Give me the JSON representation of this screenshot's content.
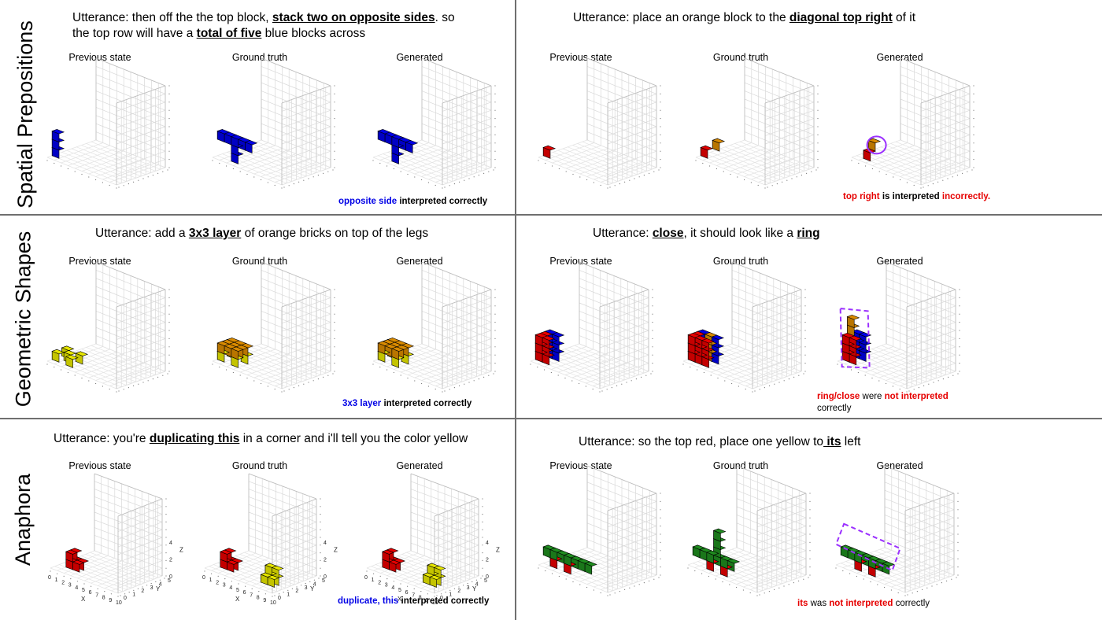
{
  "row_labels": [
    "Spatial Prepositions",
    "Geometric Shapes",
    "Anaphora"
  ],
  "column_labels": [
    "Previous state",
    "Ground truth",
    "Generated"
  ],
  "panels": [
    {
      "utterance_parts": [
        {
          "text": "Utterance: then off the the top block, ",
          "em": false
        },
        {
          "text": "stack two on opposite sides",
          "em": true
        },
        {
          "text": ". so",
          "em": false
        }
      ],
      "utterance_line2_parts": [
        {
          "text": "the top row will have a ",
          "em": false
        },
        {
          "text": "total of five",
          "em": true
        },
        {
          "text": " blue blocks across",
          "em": false
        }
      ],
      "caption_parts": [
        {
          "text": "opposite side",
          "color": "blue"
        },
        {
          "text": " interpreted correctly",
          "color": "black"
        }
      ]
    },
    {
      "utterance_parts": [
        {
          "text": "Utterance: place an orange block to the ",
          "em": false
        },
        {
          "text": "diagonal top right",
          "em": true
        },
        {
          "text": " of it",
          "em": false
        }
      ],
      "caption_parts": [
        {
          "text": "top right",
          "color": "red"
        },
        {
          "text": " is interpreted ",
          "color": "black"
        },
        {
          "text": "incorrectly.",
          "color": "red"
        }
      ]
    },
    {
      "utterance_parts": [
        {
          "text": "Utterance: add a ",
          "em": false
        },
        {
          "text": "3x3 layer",
          "em": true
        },
        {
          "text": " of orange bricks on top of the legs",
          "em": false
        }
      ],
      "caption_parts": [
        {
          "text": "3x3 layer",
          "color": "blue"
        },
        {
          "text": " interpreted correctly",
          "color": "black"
        }
      ]
    },
    {
      "utterance_parts": [
        {
          "text": "Utterance: ",
          "em": false
        },
        {
          "text": "close",
          "em": true
        },
        {
          "text": ", it should look like a ",
          "em": false
        },
        {
          "text": "ring",
          "em": true
        }
      ],
      "caption_parts": [
        {
          "text": "ring/close",
          "color": "red"
        },
        {
          "text": " were ",
          "color": "plain"
        },
        {
          "text": "not interpreted",
          "color": "red"
        }
      ],
      "caption_line2": "correctly"
    },
    {
      "utterance_parts": [
        {
          "text": "Utterance: you're ",
          "em": false
        },
        {
          "text": "duplicating this",
          "em": true
        },
        {
          "text": " in a corner and i'll tell you the color yellow",
          "em": false
        }
      ],
      "caption_parts": [
        {
          "text": "duplicate, this",
          "color": "blue"
        },
        {
          "text": " interpreted correctly",
          "color": "black"
        }
      ]
    },
    {
      "utterance_parts": [
        {
          "text": "Utterance: so the top red, place one yellow to",
          "em": false
        },
        {
          "text": " its",
          "em": true
        },
        {
          "text": " left",
          "em": false
        }
      ],
      "caption_parts": [
        {
          "text": "its",
          "color": "red"
        },
        {
          "text": " was ",
          "color": "plain"
        },
        {
          "text": "not interpreted",
          "color": "red"
        },
        {
          "text": " correctly",
          "color": "plain"
        }
      ]
    }
  ],
  "anaphora_axes": {
    "x_ticks": [
      "0",
      "1",
      "2",
      "3",
      "4",
      "5",
      "6",
      "7",
      "8",
      "9",
      "10"
    ],
    "y_ticks": [
      "0",
      "1",
      "2",
      "3",
      "4",
      "5"
    ],
    "z_ticks": [
      "0",
      "2",
      "4"
    ],
    "x_label": "X",
    "y_label": "Y",
    "z_label": "Z"
  },
  "colors": {
    "blue": "#0000e6",
    "red": "#e60000",
    "orange": "#d98a00",
    "yellow": "#e6e600",
    "green": "#1f8c1f",
    "annotation": "#9b30ff"
  }
}
